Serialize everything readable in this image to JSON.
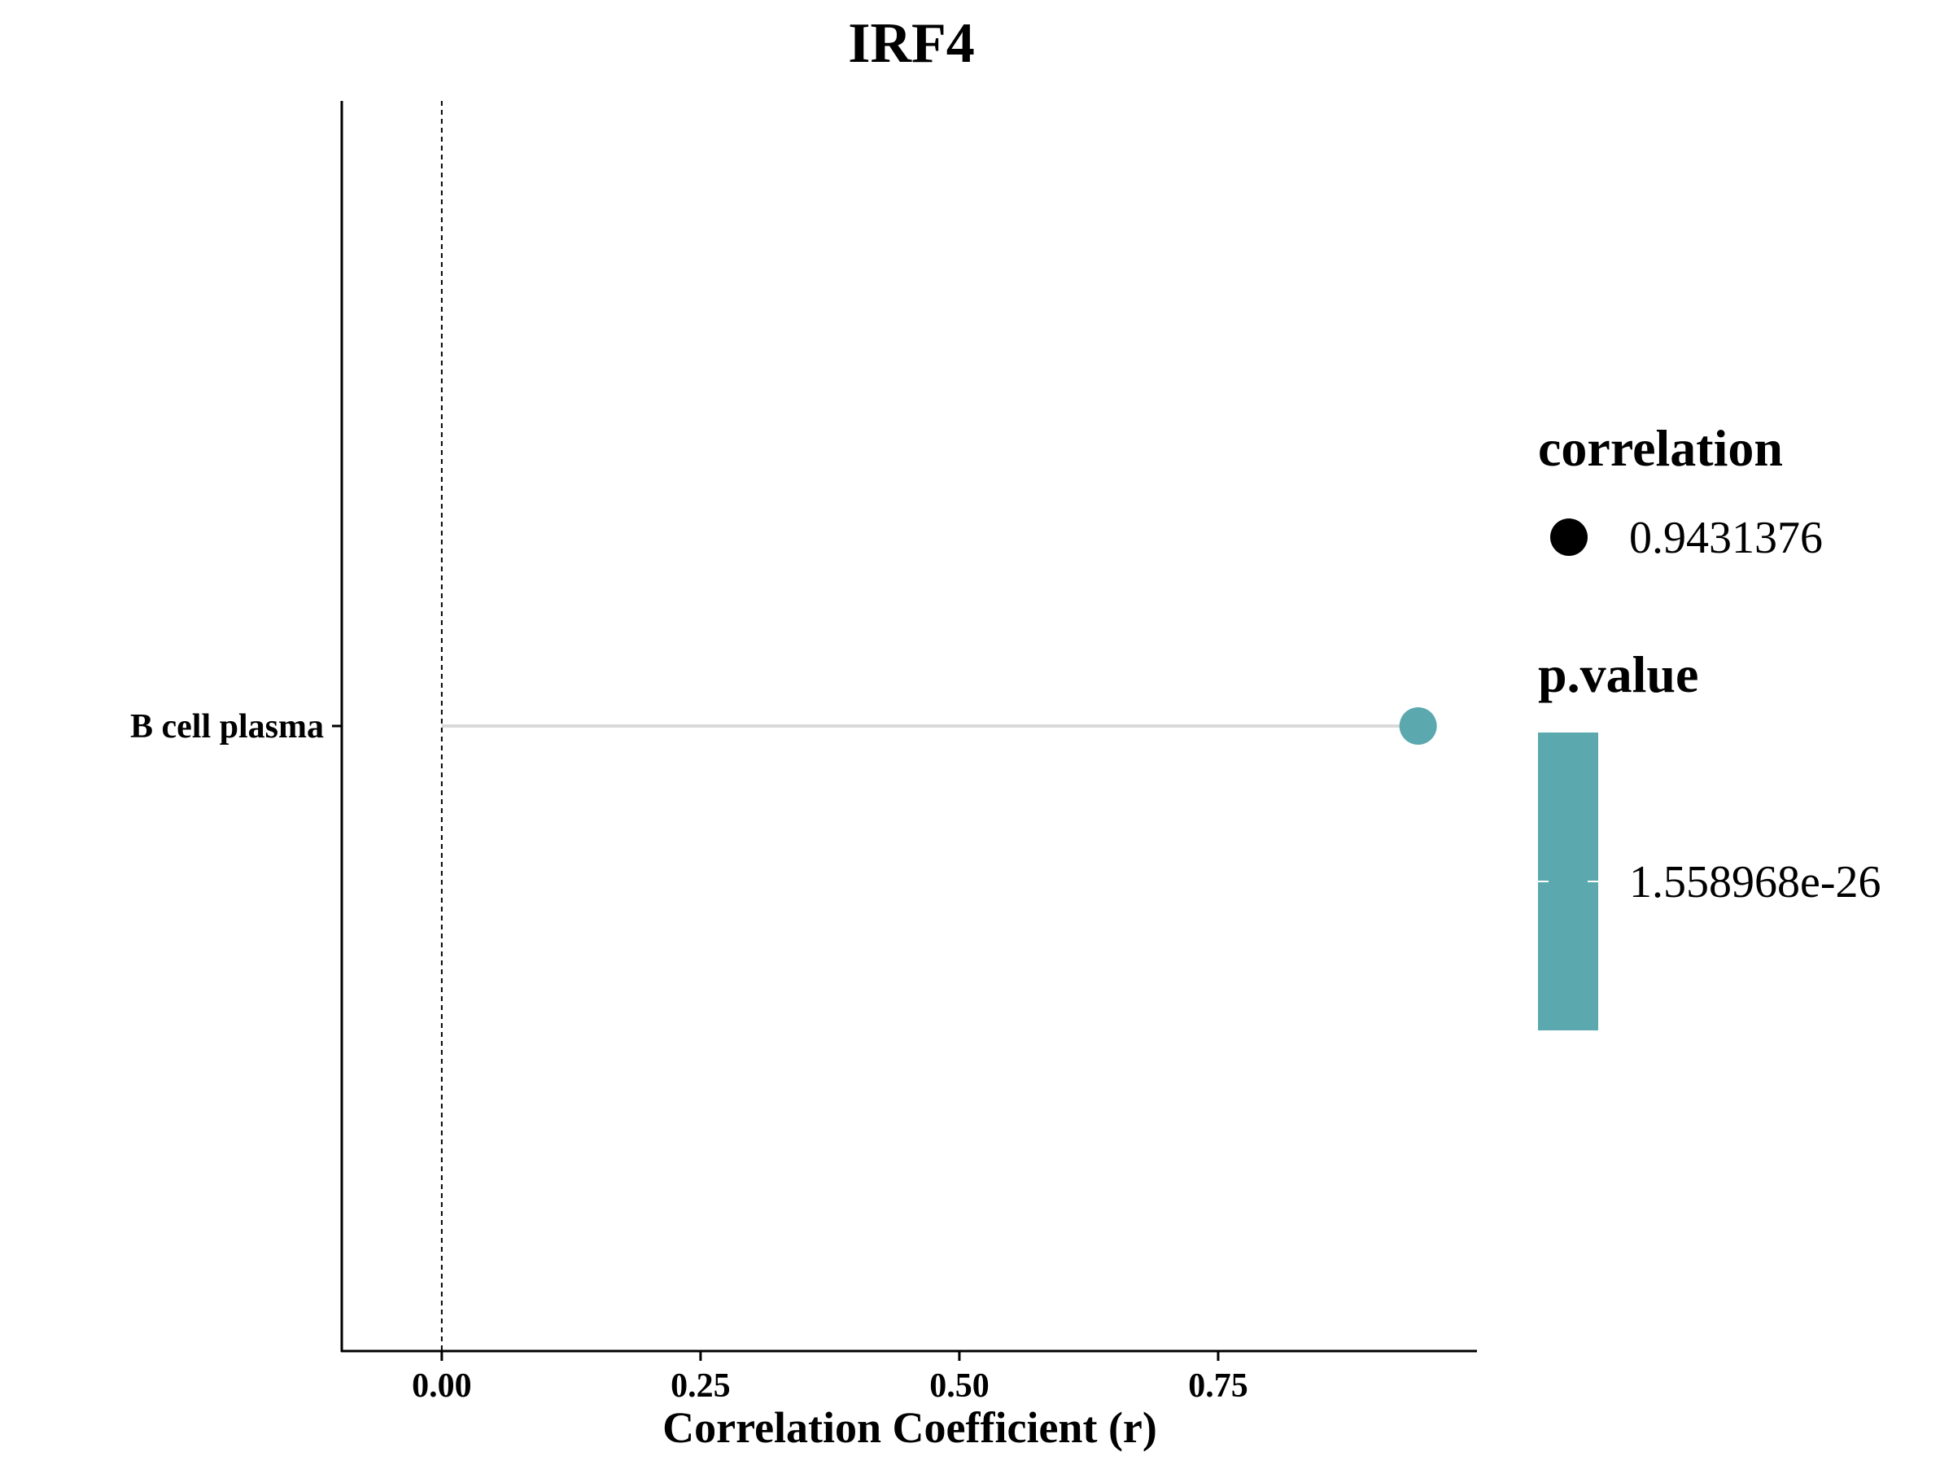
{
  "chart_data": {
    "type": "scatter",
    "title": "IRF4",
    "xlabel": "Correlation Coefficient (r)",
    "ylabel": "",
    "xlim": [
      -0.0966,
      1.0
    ],
    "x_ticks": [
      0.0,
      0.25,
      0.5,
      0.75
    ],
    "x_tick_labels": [
      "0.00",
      "0.25",
      "0.50",
      "0.75"
    ],
    "categories": [
      "B cell plasma"
    ],
    "series": [
      {
        "values": [
          0.9431376
        ],
        "p_values": [
          "1.558968e-26"
        ]
      }
    ],
    "reference_line_x": 0,
    "grid": false,
    "legend": {
      "placement": "right",
      "size_title": "correlation",
      "size_label": "0.9431376",
      "color_title": "p.value",
      "color_label": "1.558968e-26"
    },
    "colors": {
      "point": "#5BA8AF",
      "segment": "#D9D9D9",
      "axis": "#000000"
    }
  }
}
